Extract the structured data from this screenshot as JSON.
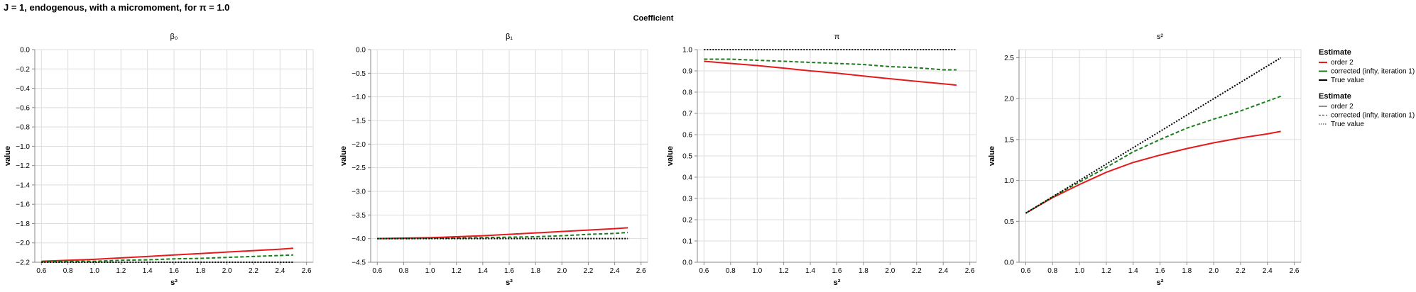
{
  "title": "J = 1, endogenous, with a micromoment,  for π = 1.0",
  "facet_header": "Coefficient",
  "colors": {
    "order2": "#e41a1c",
    "corrected": "#1a7f1a",
    "true": "#000000",
    "grid": "#dddddd",
    "axis": "#888888"
  },
  "chart_data": [
    {
      "type": "line",
      "panel_title": "β₀",
      "xlabel": "s²",
      "ylabel": "value",
      "xlim": [
        0.55,
        2.65
      ],
      "xticks": [
        0.6,
        0.8,
        1.0,
        1.2,
        1.4,
        1.6,
        1.8,
        2.0,
        2.2,
        2.4,
        2.6
      ],
      "ylim": [
        -2.2,
        0.0
      ],
      "yticks": [
        0.0,
        -0.2,
        -0.4,
        -0.6,
        -0.8,
        -1.0,
        -1.2,
        -1.4,
        -1.6,
        -1.8,
        -2.0,
        -2.2
      ],
      "x": [
        0.6,
        0.8,
        1.0,
        1.2,
        1.4,
        1.6,
        1.8,
        2.0,
        2.2,
        2.4,
        2.5
      ],
      "series": [
        {
          "name": "order 2",
          "key": "order2",
          "values": [
            -2.19,
            -2.18,
            -2.17,
            -2.155,
            -2.14,
            -2.125,
            -2.11,
            -2.095,
            -2.08,
            -2.065,
            -2.055
          ]
        },
        {
          "name": "corrected (infty, iteration 1)",
          "key": "corrected",
          "values": [
            -2.195,
            -2.19,
            -2.19,
            -2.18,
            -2.175,
            -2.165,
            -2.16,
            -2.15,
            -2.14,
            -2.13,
            -2.125
          ]
        },
        {
          "name": "True value",
          "key": "true",
          "values": [
            -2.2,
            -2.2,
            -2.2,
            -2.2,
            -2.2,
            -2.2,
            -2.2,
            -2.2,
            -2.2,
            -2.2,
            -2.2
          ]
        }
      ]
    },
    {
      "type": "line",
      "panel_title": "β₁",
      "xlabel": "s²",
      "ylabel": "value",
      "xlim": [
        0.55,
        2.65
      ],
      "xticks": [
        0.6,
        0.8,
        1.0,
        1.2,
        1.4,
        1.6,
        1.8,
        2.0,
        2.2,
        2.4,
        2.6
      ],
      "ylim": [
        -4.5,
        0.0
      ],
      "yticks": [
        0.0,
        -0.5,
        -1.0,
        -1.5,
        -2.0,
        -2.5,
        -3.0,
        -3.5,
        -4.0,
        -4.5
      ],
      "x": [
        0.6,
        0.8,
        1.0,
        1.2,
        1.4,
        1.6,
        1.8,
        2.0,
        2.2,
        2.4,
        2.5
      ],
      "series": [
        {
          "name": "order 2",
          "key": "order2",
          "values": [
            -4.0,
            -3.99,
            -3.98,
            -3.96,
            -3.94,
            -3.91,
            -3.88,
            -3.85,
            -3.82,
            -3.79,
            -3.77
          ]
        },
        {
          "name": "corrected (infty, iteration 1)",
          "key": "corrected",
          "values": [
            -4.0,
            -4.0,
            -3.99,
            -3.99,
            -3.98,
            -3.97,
            -3.96,
            -3.94,
            -3.91,
            -3.89,
            -3.87
          ]
        },
        {
          "name": "True value",
          "key": "true",
          "values": [
            -4.0,
            -4.0,
            -4.0,
            -4.0,
            -4.0,
            -4.0,
            -4.0,
            -4.0,
            -4.0,
            -4.0,
            -4.0
          ]
        }
      ]
    },
    {
      "type": "line",
      "panel_title": "π",
      "xlabel": "s²",
      "ylabel": "value",
      "xlim": [
        0.55,
        2.65
      ],
      "xticks": [
        0.6,
        0.8,
        1.0,
        1.2,
        1.4,
        1.6,
        1.8,
        2.0,
        2.2,
        2.4,
        2.6
      ],
      "ylim": [
        0.0,
        1.0
      ],
      "yticks": [
        1.0,
        0.9,
        0.8,
        0.7,
        0.6,
        0.5,
        0.4,
        0.3,
        0.2,
        0.1,
        0.0
      ],
      "x": [
        0.6,
        0.8,
        1.0,
        1.2,
        1.4,
        1.6,
        1.8,
        2.0,
        2.2,
        2.4,
        2.5
      ],
      "series": [
        {
          "name": "order 2",
          "key": "order2",
          "values": [
            0.945,
            0.935,
            0.925,
            0.913,
            0.9,
            0.889,
            0.876,
            0.863,
            0.851,
            0.839,
            0.833
          ]
        },
        {
          "name": "corrected (infty, iteration 1)",
          "key": "corrected",
          "values": [
            0.955,
            0.955,
            0.95,
            0.945,
            0.94,
            0.935,
            0.93,
            0.92,
            0.915,
            0.905,
            0.905
          ]
        },
        {
          "name": "True value",
          "key": "true",
          "values": [
            1.0,
            1.0,
            1.0,
            1.0,
            1.0,
            1.0,
            1.0,
            1.0,
            1.0,
            1.0,
            1.0
          ]
        }
      ]
    },
    {
      "type": "line",
      "panel_title": "s²",
      "xlabel": "s²",
      "ylabel": "value",
      "xlim": [
        0.55,
        2.65
      ],
      "xticks": [
        0.6,
        0.8,
        1.0,
        1.2,
        1.4,
        1.6,
        1.8,
        2.0,
        2.2,
        2.4,
        2.6
      ],
      "ylim": [
        0.0,
        2.6
      ],
      "yticks": [
        2.5,
        2.0,
        1.5,
        1.0,
        0.5,
        0.0
      ],
      "x": [
        0.6,
        0.8,
        1.0,
        1.2,
        1.4,
        1.6,
        1.8,
        2.0,
        2.2,
        2.4,
        2.5
      ],
      "series": [
        {
          "name": "order 2",
          "key": "order2",
          "values": [
            0.6,
            0.79,
            0.95,
            1.1,
            1.22,
            1.31,
            1.39,
            1.46,
            1.52,
            1.57,
            1.6
          ]
        },
        {
          "name": "corrected (infty, iteration 1)",
          "key": "corrected",
          "values": [
            0.6,
            0.8,
            0.98,
            1.16,
            1.35,
            1.5,
            1.64,
            1.75,
            1.85,
            1.97,
            2.03
          ]
        },
        {
          "name": "True value",
          "key": "true",
          "values": [
            0.6,
            0.8,
            1.0,
            1.2,
            1.4,
            1.6,
            1.8,
            2.0,
            2.2,
            2.4,
            2.5
          ]
        }
      ]
    }
  ],
  "legend": {
    "color_title": "Estimate",
    "color_items": [
      {
        "label": "order 2",
        "key": "order2"
      },
      {
        "label": "corrected (infty, iteration 1)",
        "key": "corrected"
      },
      {
        "label": "True value",
        "key": "true"
      }
    ],
    "dash_title": "Estimate",
    "dash_items": [
      {
        "label": "order 2",
        "key": "order2"
      },
      {
        "label": "corrected (infty, iteration 1)",
        "key": "corrected"
      },
      {
        "label": "True value",
        "key": "true"
      }
    ]
  }
}
